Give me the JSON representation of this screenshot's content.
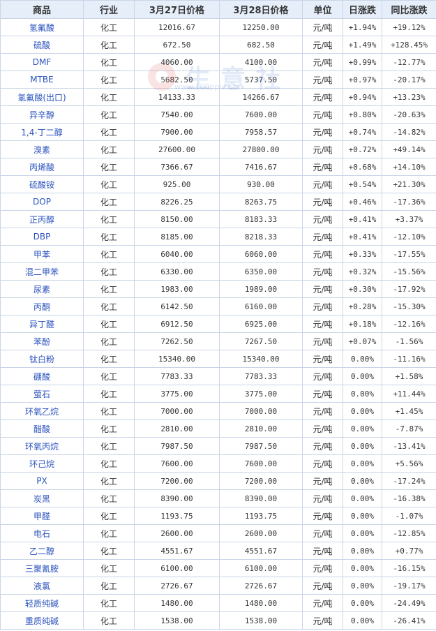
{
  "headers": [
    "商品",
    "行业",
    "3月27日价格",
    "3月28日价格",
    "单位",
    "日涨跌",
    "同比涨跌"
  ],
  "watermark": {
    "text": "生意社",
    "sub": "www.100ppi.com"
  },
  "colors": {
    "up": "#e60000",
    "down": "#008000",
    "header_bg": "#e6eefa",
    "border": "#c9d5e6",
    "name": "#2a52be"
  },
  "rows": [
    {
      "name": "氢氟酸",
      "industry": "化工",
      "p1": "12016.67",
      "p2": "12250.00",
      "unit": "元/吨",
      "daily": "+1.94%",
      "yoy": "+19.12%"
    },
    {
      "name": "硫酸",
      "industry": "化工",
      "p1": "672.50",
      "p2": "682.50",
      "unit": "元/吨",
      "daily": "+1.49%",
      "yoy": "+128.45%"
    },
    {
      "name": "DMF",
      "industry": "化工",
      "p1": "4060.00",
      "p2": "4100.00",
      "unit": "元/吨",
      "daily": "+0.99%",
      "yoy": "-12.77%"
    },
    {
      "name": "MTBE",
      "industry": "化工",
      "p1": "5682.50",
      "p2": "5737.50",
      "unit": "元/吨",
      "daily": "+0.97%",
      "yoy": "-20.17%"
    },
    {
      "name": "氢氟酸(出口)",
      "industry": "化工",
      "p1": "14133.33",
      "p2": "14266.67",
      "unit": "元/吨",
      "daily": "+0.94%",
      "yoy": "+13.23%"
    },
    {
      "name": "异辛醇",
      "industry": "化工",
      "p1": "7540.00",
      "p2": "7600.00",
      "unit": "元/吨",
      "daily": "+0.80%",
      "yoy": "-20.63%"
    },
    {
      "name": "1,4-丁二醇",
      "industry": "化工",
      "p1": "7900.00",
      "p2": "7958.57",
      "unit": "元/吨",
      "daily": "+0.74%",
      "yoy": "-14.82%"
    },
    {
      "name": "溴素",
      "industry": "化工",
      "p1": "27600.00",
      "p2": "27800.00",
      "unit": "元/吨",
      "daily": "+0.72%",
      "yoy": "+49.14%"
    },
    {
      "name": "丙烯酸",
      "industry": "化工",
      "p1": "7366.67",
      "p2": "7416.67",
      "unit": "元/吨",
      "daily": "+0.68%",
      "yoy": "+14.10%"
    },
    {
      "name": "硫酸铵",
      "industry": "化工",
      "p1": "925.00",
      "p2": "930.00",
      "unit": "元/吨",
      "daily": "+0.54%",
      "yoy": "+21.30%"
    },
    {
      "name": "DOP",
      "industry": "化工",
      "p1": "8226.25",
      "p2": "8263.75",
      "unit": "元/吨",
      "daily": "+0.46%",
      "yoy": "-17.36%"
    },
    {
      "name": "正丙醇",
      "industry": "化工",
      "p1": "8150.00",
      "p2": "8183.33",
      "unit": "元/吨",
      "daily": "+0.41%",
      "yoy": "+3.37%"
    },
    {
      "name": "DBP",
      "industry": "化工",
      "p1": "8185.00",
      "p2": "8218.33",
      "unit": "元/吨",
      "daily": "+0.41%",
      "yoy": "-12.10%"
    },
    {
      "name": "甲苯",
      "industry": "化工",
      "p1": "6040.00",
      "p2": "6060.00",
      "unit": "元/吨",
      "daily": "+0.33%",
      "yoy": "-17.55%"
    },
    {
      "name": "混二甲苯",
      "industry": "化工",
      "p1": "6330.00",
      "p2": "6350.00",
      "unit": "元/吨",
      "daily": "+0.32%",
      "yoy": "-15.56%"
    },
    {
      "name": "尿素",
      "industry": "化工",
      "p1": "1983.00",
      "p2": "1989.00",
      "unit": "元/吨",
      "daily": "+0.30%",
      "yoy": "-17.92%"
    },
    {
      "name": "丙酮",
      "industry": "化工",
      "p1": "6142.50",
      "p2": "6160.00",
      "unit": "元/吨",
      "daily": "+0.28%",
      "yoy": "-15.30%"
    },
    {
      "name": "异丁醛",
      "industry": "化工",
      "p1": "6912.50",
      "p2": "6925.00",
      "unit": "元/吨",
      "daily": "+0.18%",
      "yoy": "-12.16%"
    },
    {
      "name": "苯酚",
      "industry": "化工",
      "p1": "7262.50",
      "p2": "7267.50",
      "unit": "元/吨",
      "daily": "+0.07%",
      "yoy": "-1.56%"
    },
    {
      "name": "钛白粉",
      "industry": "化工",
      "p1": "15340.00",
      "p2": "15340.00",
      "unit": "元/吨",
      "daily": "0.00%",
      "yoy": "-11.16%"
    },
    {
      "name": "硼酸",
      "industry": "化工",
      "p1": "7783.33",
      "p2": "7783.33",
      "unit": "元/吨",
      "daily": "0.00%",
      "yoy": "+1.58%"
    },
    {
      "name": "萤石",
      "industry": "化工",
      "p1": "3775.00",
      "p2": "3775.00",
      "unit": "元/吨",
      "daily": "0.00%",
      "yoy": "+11.44%"
    },
    {
      "name": "环氧乙烷",
      "industry": "化工",
      "p1": "7000.00",
      "p2": "7000.00",
      "unit": "元/吨",
      "daily": "0.00%",
      "yoy": "+1.45%"
    },
    {
      "name": "醋酸",
      "industry": "化工",
      "p1": "2810.00",
      "p2": "2810.00",
      "unit": "元/吨",
      "daily": "0.00%",
      "yoy": "-7.87%"
    },
    {
      "name": "环氧丙烷",
      "industry": "化工",
      "p1": "7987.50",
      "p2": "7987.50",
      "unit": "元/吨",
      "daily": "0.00%",
      "yoy": "-13.41%"
    },
    {
      "name": "环己烷",
      "industry": "化工",
      "p1": "7600.00",
      "p2": "7600.00",
      "unit": "元/吨",
      "daily": "0.00%",
      "yoy": "+5.56%"
    },
    {
      "name": "PX",
      "industry": "化工",
      "p1": "7200.00",
      "p2": "7200.00",
      "unit": "元/吨",
      "daily": "0.00%",
      "yoy": "-17.24%"
    },
    {
      "name": "炭黑",
      "industry": "化工",
      "p1": "8390.00",
      "p2": "8390.00",
      "unit": "元/吨",
      "daily": "0.00%",
      "yoy": "-16.38%"
    },
    {
      "name": "甲醛",
      "industry": "化工",
      "p1": "1193.75",
      "p2": "1193.75",
      "unit": "元/吨",
      "daily": "0.00%",
      "yoy": "-1.07%"
    },
    {
      "name": "电石",
      "industry": "化工",
      "p1": "2600.00",
      "p2": "2600.00",
      "unit": "元/吨",
      "daily": "0.00%",
      "yoy": "-12.85%"
    },
    {
      "name": "乙二醇",
      "industry": "化工",
      "p1": "4551.67",
      "p2": "4551.67",
      "unit": "元/吨",
      "daily": "0.00%",
      "yoy": "+0.77%"
    },
    {
      "name": "三聚氰胺",
      "industry": "化工",
      "p1": "6100.00",
      "p2": "6100.00",
      "unit": "元/吨",
      "daily": "0.00%",
      "yoy": "-16.15%"
    },
    {
      "name": "液氯",
      "industry": "化工",
      "p1": "2726.67",
      "p2": "2726.67",
      "unit": "元/吨",
      "daily": "0.00%",
      "yoy": "-19.17%"
    },
    {
      "name": "轻质纯碱",
      "industry": "化工",
      "p1": "1480.00",
      "p2": "1480.00",
      "unit": "元/吨",
      "daily": "0.00%",
      "yoy": "-24.49%"
    },
    {
      "name": "重质纯碱",
      "industry": "化工",
      "p1": "1538.00",
      "p2": "1538.00",
      "unit": "元/吨",
      "daily": "0.00%",
      "yoy": "-26.41%"
    }
  ]
}
